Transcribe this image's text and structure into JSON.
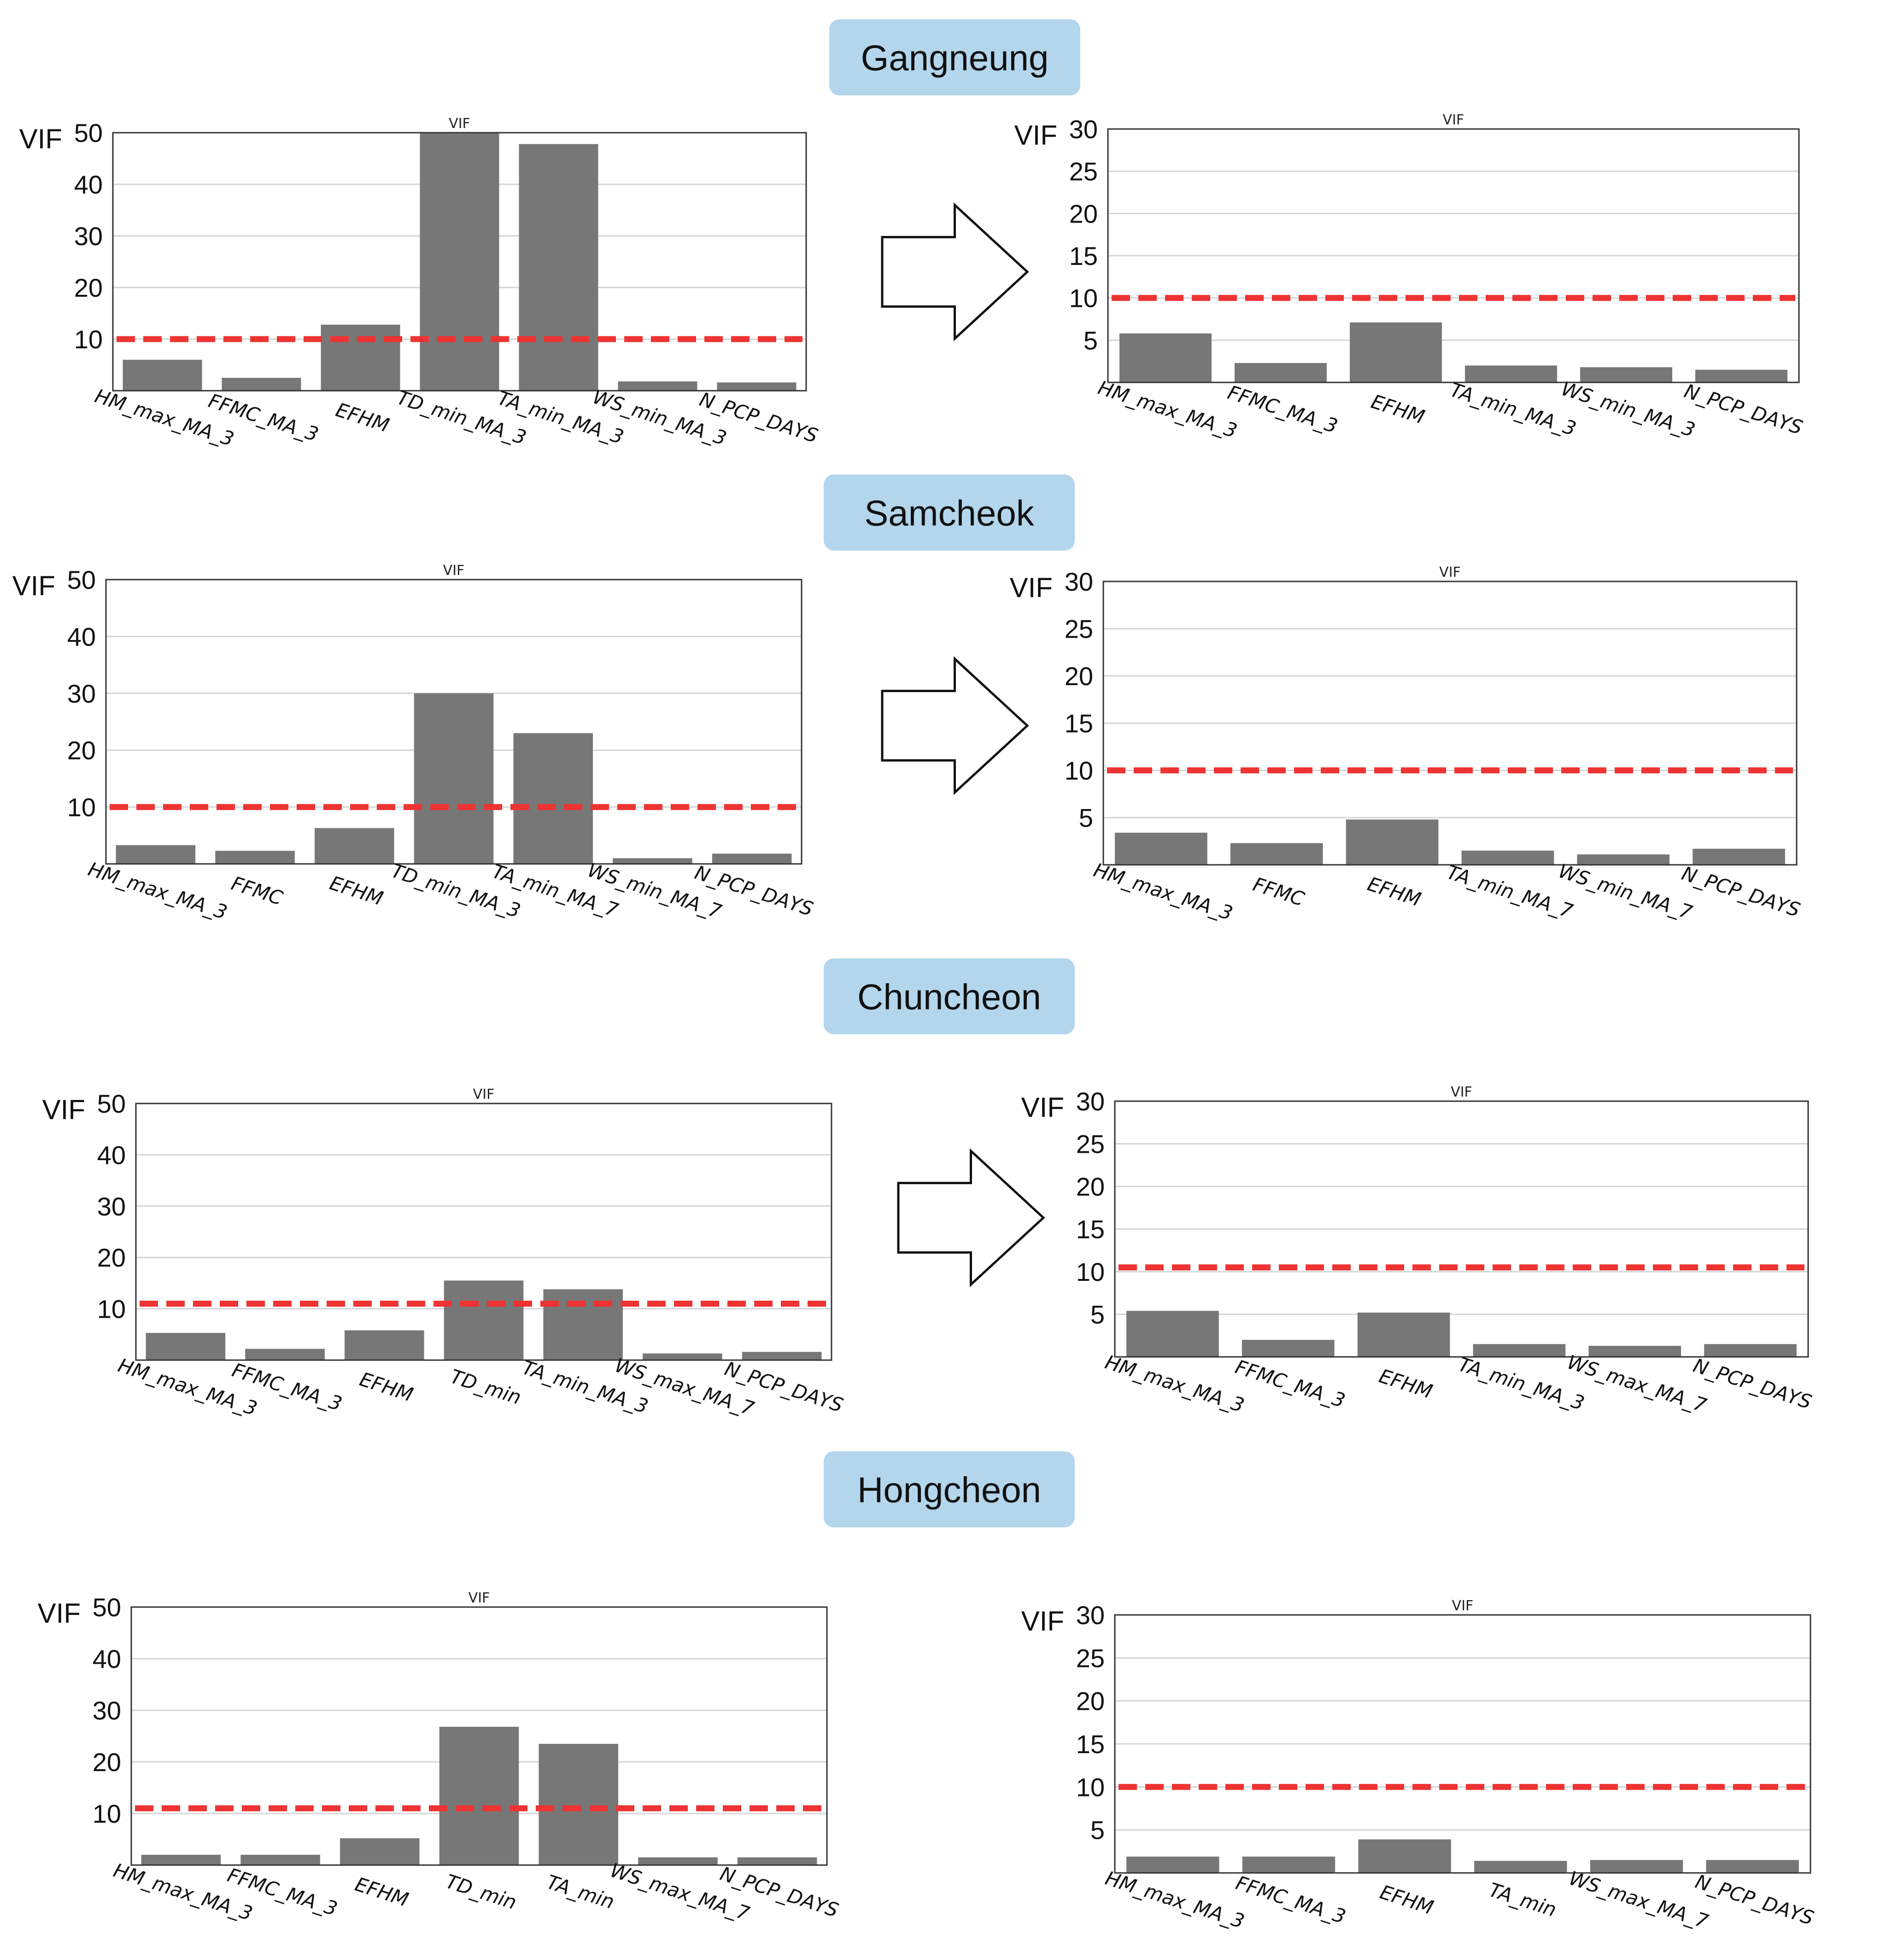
{
  "colors": {
    "bar": "#777777",
    "threshold": "#ee3333",
    "title_box": "#b3d6ec",
    "grid": "#d4d4d4",
    "axis": "#333333"
  },
  "arrow_icon": "right-arrow-outline-icon",
  "chart_data": [
    {
      "station": "Gangneung",
      "stage": "before",
      "type": "bar",
      "title": "VIF",
      "ylabel": "VIF",
      "ylim": [
        0,
        50
      ],
      "yticks": [
        10,
        20,
        30,
        40,
        50
      ],
      "threshold": 10,
      "categories": [
        "HM_max_MA_3",
        "FFMC_MA_3",
        "EFHM",
        "TD_min_MA_3",
        "TA_min_MA_3",
        "WS_min_MA_3",
        "N_PCP_DAYS"
      ],
      "values": [
        6,
        2.5,
        12.8,
        50,
        47.8,
        1.8,
        1.6
      ]
    },
    {
      "station": "Gangneung",
      "stage": "after",
      "type": "bar",
      "title": "VIF",
      "ylabel": "VIF",
      "ylim": [
        0,
        30
      ],
      "yticks": [
        5,
        10,
        15,
        20,
        25,
        30
      ],
      "threshold": 10,
      "categories": [
        "HM_max_MA_3",
        "FFMC_MA_3",
        "EFHM",
        "TA_min_MA_3",
        "WS_min_MA_3",
        "N_PCP_DAYS"
      ],
      "values": [
        5.8,
        2.3,
        7.1,
        2,
        1.8,
        1.5
      ]
    },
    {
      "station": "Samcheok",
      "stage": "before",
      "type": "bar",
      "title": "VIF",
      "ylabel": "VIF",
      "ylim": [
        0,
        50
      ],
      "yticks": [
        10,
        20,
        30,
        40,
        50
      ],
      "threshold": 10,
      "categories": [
        "HM_max_MA_3",
        "FFMC",
        "EFHM",
        "TD_min_MA_3",
        "TA_min_MA_7",
        "WS_min_MA_7",
        "N_PCP_DAYS"
      ],
      "values": [
        3.3,
        2.3,
        6.3,
        30,
        23,
        1,
        1.8
      ]
    },
    {
      "station": "Samcheok",
      "stage": "after",
      "type": "bar",
      "title": "VIF",
      "ylabel": "VIF",
      "ylim": [
        0,
        30
      ],
      "yticks": [
        5,
        10,
        15,
        20,
        25,
        30
      ],
      "threshold": 10,
      "categories": [
        "HM_max_MA_3",
        "FFMC",
        "EFHM",
        "TA_min_MA_7",
        "WS_min_MA_7",
        "N_PCP_DAYS"
      ],
      "values": [
        3.4,
        2.3,
        4.8,
        1.5,
        1.1,
        1.7
      ]
    },
    {
      "station": "Chuncheon",
      "stage": "before",
      "type": "bar",
      "title": "VIF",
      "ylabel": "VIF",
      "ylim": [
        0,
        50
      ],
      "yticks": [
        10,
        20,
        30,
        40,
        50
      ],
      "threshold": 11,
      "categories": [
        "HM_max_MA_3",
        "FFMC_MA_3",
        "EFHM",
        "TD_min",
        "TA_min_MA_3",
        "WS_max_MA_7",
        "N_PCP_DAYS"
      ],
      "values": [
        5.3,
        2.2,
        5.8,
        15.5,
        13.8,
        1.3,
        1.6
      ]
    },
    {
      "station": "Chuncheon",
      "stage": "after",
      "type": "bar",
      "title": "VIF",
      "ylabel": "VIF",
      "ylim": [
        0,
        30
      ],
      "yticks": [
        5,
        10,
        15,
        20,
        25,
        30
      ],
      "threshold": 10.5,
      "categories": [
        "HM_max_MA_3",
        "FFMC_MA_3",
        "EFHM",
        "TA_min_MA_3",
        "WS_max_MA_7",
        "N_PCP_DAYS"
      ],
      "values": [
        5.4,
        2,
        5.2,
        1.5,
        1.3,
        1.5
      ]
    },
    {
      "station": "Hongcheon",
      "stage": "before",
      "type": "bar",
      "title": "VIF",
      "ylabel": "VIF",
      "ylim": [
        0,
        50
      ],
      "yticks": [
        10,
        20,
        30,
        40,
        50
      ],
      "threshold": 11,
      "categories": [
        "HM_max_MA_3",
        "FFMC_MA_3",
        "EFHM",
        "TD_min",
        "TA_min",
        "WS_max_MA_7",
        "N_PCP_DAYS"
      ],
      "values": [
        2,
        2,
        5.2,
        26.8,
        23.5,
        1.5,
        1.5
      ]
    },
    {
      "station": "Hongcheon",
      "stage": "after",
      "type": "bar",
      "title": "VIF",
      "ylabel": "VIF",
      "ylim": [
        0,
        30
      ],
      "yticks": [
        5,
        10,
        15,
        20,
        25,
        30
      ],
      "threshold": 10,
      "categories": [
        "HM_max_MA_3",
        "FFMC_MA_3",
        "EFHM",
        "TA_min",
        "WS_max_MA_7",
        "N_PCP_DAYS"
      ],
      "values": [
        1.9,
        1.9,
        3.9,
        1.4,
        1.5,
        1.5
      ]
    }
  ]
}
